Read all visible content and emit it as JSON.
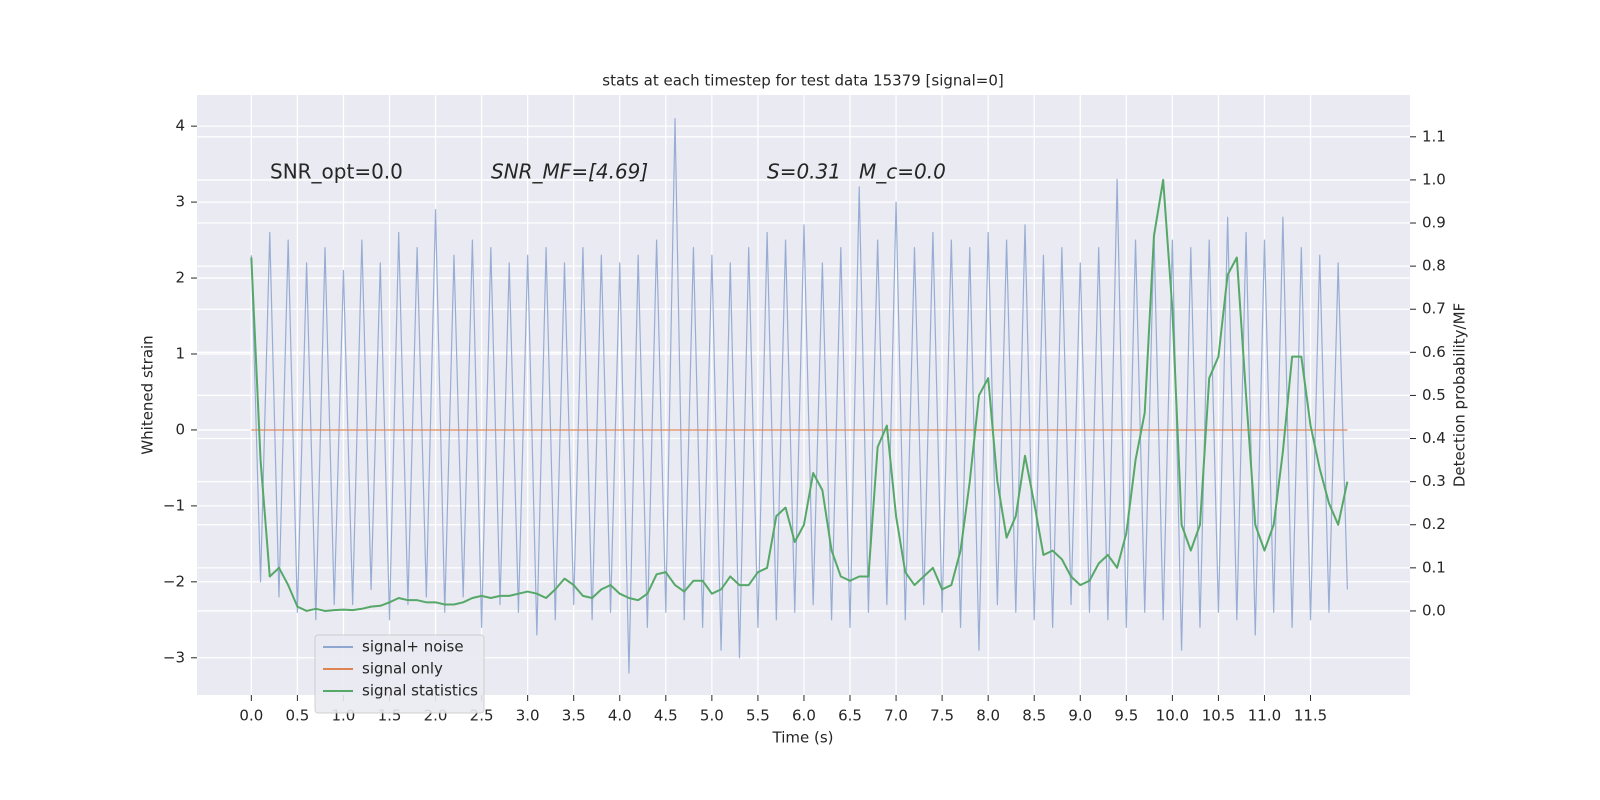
{
  "chart_data": {
    "type": "line",
    "title": "stats at each timestep for test data 15379 [signal=0]",
    "xlabel": "Time (s)",
    "ylabel": "Whitened strain",
    "y2label": "Detection probability/MF",
    "annotations": [
      "SNR_opt=0.0",
      "SNR_MF=[4.69]",
      "S=0.31",
      "M_c=0.0"
    ],
    "grid": true,
    "legend": "lower left",
    "xlim": [
      -0.59,
      12.58
    ],
    "ylim": [
      -3.49,
      4.41
    ],
    "y2lim": [
      -0.195,
      1.197
    ],
    "xticks": [
      {
        "value": 0,
        "label": "0.0"
      },
      0.5,
      {
        "value": 1,
        "label": "1.0"
      },
      1.5,
      {
        "value": 2,
        "label": "2.0"
      },
      2.5,
      {
        "value": 3,
        "label": "3.0"
      },
      3.5,
      {
        "value": 4,
        "label": "4.0"
      },
      4.5,
      {
        "value": 5,
        "label": "5.0"
      },
      5.5,
      {
        "value": 6,
        "label": "6.0"
      },
      6.5,
      {
        "value": 7,
        "label": "7.0"
      },
      7.5,
      {
        "value": 8,
        "label": "8.0"
      },
      8.5,
      {
        "value": 9,
        "label": "9.0"
      },
      9.5,
      {
        "value": 10,
        "label": "10.0"
      },
      10.5,
      {
        "value": 11,
        "label": "11.0"
      },
      11.5
    ],
    "yticks": [
      {
        "value": -3,
        "label": "−3"
      },
      {
        "value": -2,
        "label": "−2"
      },
      {
        "value": -1,
        "label": "−1"
      },
      0,
      1,
      2,
      3,
      4
    ],
    "y2ticks": [
      {
        "value": 0,
        "label": "0.0"
      },
      0.1,
      0.2,
      0.3,
      0.4,
      0.5,
      0.6,
      0.7,
      0.8,
      0.9,
      {
        "value": 1,
        "label": "1.0"
      },
      1.1
    ],
    "x": [
      0,
      0.1,
      0.2,
      0.3,
      0.4,
      0.5,
      0.6,
      0.7,
      0.8,
      0.9,
      1,
      1.1,
      1.2,
      1.3,
      1.4,
      1.5,
      1.6,
      1.7,
      1.8,
      1.9,
      2,
      2.1,
      2.2,
      2.3,
      2.4,
      2.5,
      2.6,
      2.7,
      2.8,
      2.9,
      3,
      3.1,
      3.2,
      3.3,
      3.4,
      3.5,
      3.6,
      3.7,
      3.8,
      3.9,
      4,
      4.1,
      4.2,
      4.3,
      4.4,
      4.5,
      4.6,
      4.7,
      4.8,
      4.9,
      5,
      5.1,
      5.2,
      5.3,
      5.4,
      5.5,
      5.6,
      5.7,
      5.8,
      5.9,
      6,
      6.1,
      6.2,
      6.3,
      6.4,
      6.5,
      6.6,
      6.7,
      6.8,
      6.9,
      7,
      7.1,
      7.2,
      7.3,
      7.4,
      7.5,
      7.6,
      7.7,
      7.8,
      7.9,
      8,
      8.1,
      8.2,
      8.3,
      8.4,
      8.5,
      8.6,
      8.7,
      8.8,
      8.9,
      9,
      9.1,
      9.2,
      9.3,
      9.4,
      9.5,
      9.6,
      9.7,
      9.8,
      9.9,
      10,
      10.1,
      10.2,
      10.3,
      10.4,
      10.5,
      10.6,
      10.7,
      10.8,
      10.9,
      11,
      11.1,
      11.2,
      11.3,
      11.4,
      11.5,
      11.6,
      11.7,
      11.8,
      11.9
    ],
    "series": [
      {
        "name": "signal+ noise",
        "color": "#8fa6d0",
        "values": [
          2.3,
          -2.0,
          2.6,
          -2.2,
          2.5,
          -2.4,
          2.2,
          -2.5,
          2.4,
          -2.3,
          2.1,
          -2.3,
          2.5,
          -2.1,
          2.2,
          -2.5,
          2.6,
          -2.3,
          2.4,
          -2.2,
          2.9,
          -2.4,
          2.3,
          -2.2,
          2.5,
          -2.6,
          2.4,
          -2.3,
          2.2,
          -2.4,
          2.3,
          -2.7,
          2.4,
          -2.5,
          2.2,
          -2.3,
          2.4,
          -2.5,
          2.3,
          -2.4,
          2.2,
          -3.2,
          2.3,
          -2.6,
          2.5,
          -2.4,
          4.1,
          -2.5,
          2.4,
          -2.6,
          2.3,
          -2.9,
          2.2,
          -3.0,
          2.4,
          -2.6,
          2.6,
          -2.5,
          2.5,
          -2.4,
          2.7,
          -2.3,
          2.2,
          -2.5,
          2.4,
          -2.6,
          3.2,
          -2.4,
          2.5,
          -2.3,
          3.0,
          -2.5,
          2.4,
          -2.3,
          2.6,
          -2.4,
          2.5,
          -2.6,
          2.4,
          -2.9,
          2.6,
          -2.3,
          2.5,
          -2.4,
          2.7,
          -2.5,
          2.3,
          -2.6,
          2.4,
          -2.3,
          2.2,
          -2.4,
          2.4,
          -2.5,
          3.3,
          -2.6,
          2.5,
          -2.4,
          2.6,
          -2.5,
          2.5,
          -2.9,
          2.4,
          -2.6,
          2.5,
          -2.4,
          2.8,
          -2.5,
          2.6,
          -2.7,
          2.5,
          -2.4,
          2.8,
          -2.6,
          2.4,
          -2.5,
          2.3,
          -2.4,
          2.2,
          -2.1
        ]
      },
      {
        "name": "signal only",
        "color": "#dd8452",
        "values": [
          0,
          0,
          0,
          0,
          0,
          0,
          0,
          0,
          0,
          0,
          0,
          0,
          0,
          0,
          0,
          0,
          0,
          0,
          0,
          0,
          0,
          0,
          0,
          0,
          0,
          0,
          0,
          0,
          0,
          0,
          0,
          0,
          0,
          0,
          0,
          0,
          0,
          0,
          0,
          0,
          0,
          0,
          0,
          0,
          0,
          0,
          0,
          0,
          0,
          0,
          0,
          0,
          0,
          0,
          0,
          0,
          0,
          0,
          0,
          0,
          0,
          0,
          0,
          0,
          0,
          0,
          0,
          0,
          0,
          0,
          0,
          0,
          0,
          0,
          0,
          0,
          0,
          0,
          0,
          0,
          0,
          0,
          0,
          0,
          0,
          0,
          0,
          0,
          0,
          0,
          0,
          0,
          0,
          0,
          0,
          0,
          0,
          0,
          0,
          0,
          0,
          0,
          0,
          0,
          0,
          0,
          0,
          0,
          0,
          0,
          0,
          0,
          0,
          0,
          0,
          0,
          0,
          0,
          0,
          0
        ]
      },
      {
        "name": "signal statistics",
        "color": "#55a868",
        "axis": "y2",
        "values": [
          0.82,
          0.35,
          0.08,
          0.1,
          0.06,
          0.01,
          0.0,
          0.005,
          0.0,
          0.002,
          0.003,
          0.002,
          0.005,
          0.01,
          0.012,
          0.02,
          0.03,
          0.025,
          0.025,
          0.02,
          0.02,
          0.015,
          0.015,
          0.02,
          0.03,
          0.035,
          0.03,
          0.035,
          0.035,
          0.04,
          0.045,
          0.04,
          0.03,
          0.05,
          0.075,
          0.06,
          0.035,
          0.03,
          0.05,
          0.06,
          0.04,
          0.03,
          0.025,
          0.04,
          0.085,
          0.09,
          0.06,
          0.045,
          0.07,
          0.07,
          0.04,
          0.05,
          0.08,
          0.06,
          0.06,
          0.09,
          0.1,
          0.22,
          0.24,
          0.16,
          0.2,
          0.32,
          0.28,
          0.14,
          0.08,
          0.07,
          0.08,
          0.08,
          0.38,
          0.43,
          0.22,
          0.09,
          0.06,
          0.08,
          0.1,
          0.05,
          0.06,
          0.14,
          0.3,
          0.5,
          0.54,
          0.3,
          0.17,
          0.22,
          0.36,
          0.25,
          0.13,
          0.14,
          0.12,
          0.08,
          0.06,
          0.07,
          0.11,
          0.13,
          0.1,
          0.18,
          0.35,
          0.46,
          0.87,
          1.0,
          0.7,
          0.2,
          0.14,
          0.2,
          0.54,
          0.59,
          0.78,
          0.82,
          0.5,
          0.2,
          0.14,
          0.2,
          0.37,
          0.59,
          0.59,
          0.43,
          0.33,
          0.25,
          0.2,
          0.3
        ]
      }
    ]
  }
}
